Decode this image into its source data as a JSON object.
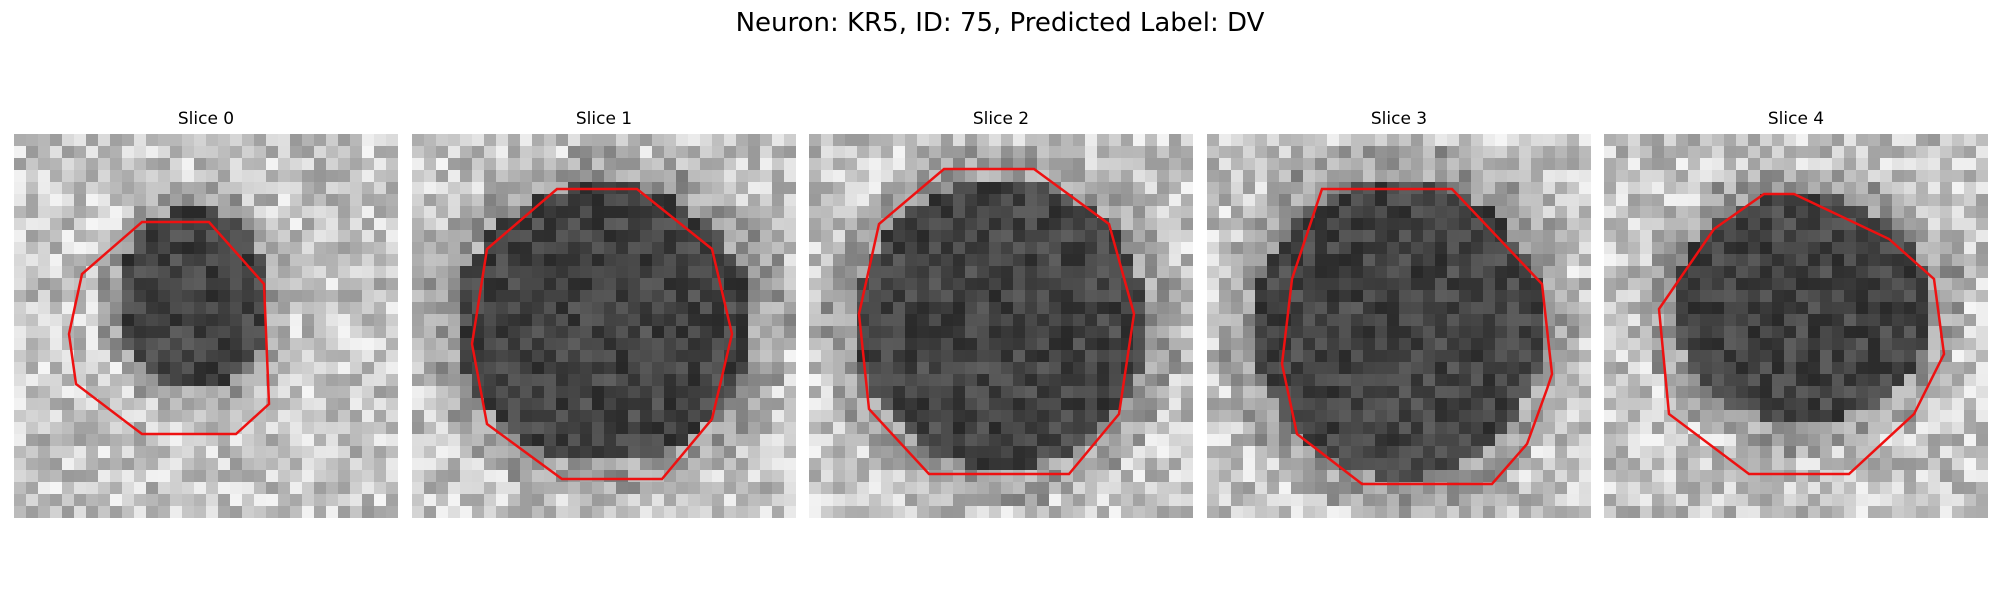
{
  "figure": {
    "title": "Neuron: KR5, ID: 75, Predicted Label: DV"
  },
  "panels": [
    {
      "title": "Slice 0"
    },
    {
      "title": "Slice 1"
    },
    {
      "title": "Slice 2"
    },
    {
      "title": "Slice 3"
    },
    {
      "title": "Slice 4"
    }
  ],
  "colors": {
    "contour": "#ee1111",
    "background": "#ffffff"
  }
}
